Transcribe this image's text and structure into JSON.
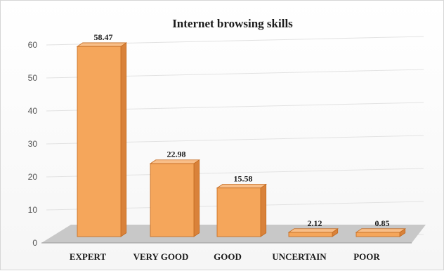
{
  "chart_data": {
    "type": "bar",
    "title": "Internet browsing skills",
    "categories": [
      "EXPERT",
      "VERY GOOD",
      "GOOD",
      "UNCERTAIN",
      "POOR"
    ],
    "values": [
      58.47,
      22.98,
      15.58,
      2.12,
      0.85
    ],
    "data_labels": [
      "58.47",
      "22.98",
      "15.58",
      "2.12",
      "0.85"
    ],
    "xlabel": "",
    "ylabel": "",
    "ylim": [
      0,
      60
    ],
    "y_ticks": [
      "0",
      "10",
      "20",
      "30",
      "40",
      "50",
      "60"
    ],
    "grid": true,
    "legend": "none",
    "style": "3d-column",
    "colors": {
      "bar_front": "#f5a65b",
      "bar_side": "#d9823a",
      "bar_top": "#f8be88",
      "bar_edge": "#c46a1f",
      "floor": "#c8c8c8",
      "grid": "#e2e2e2"
    }
  }
}
